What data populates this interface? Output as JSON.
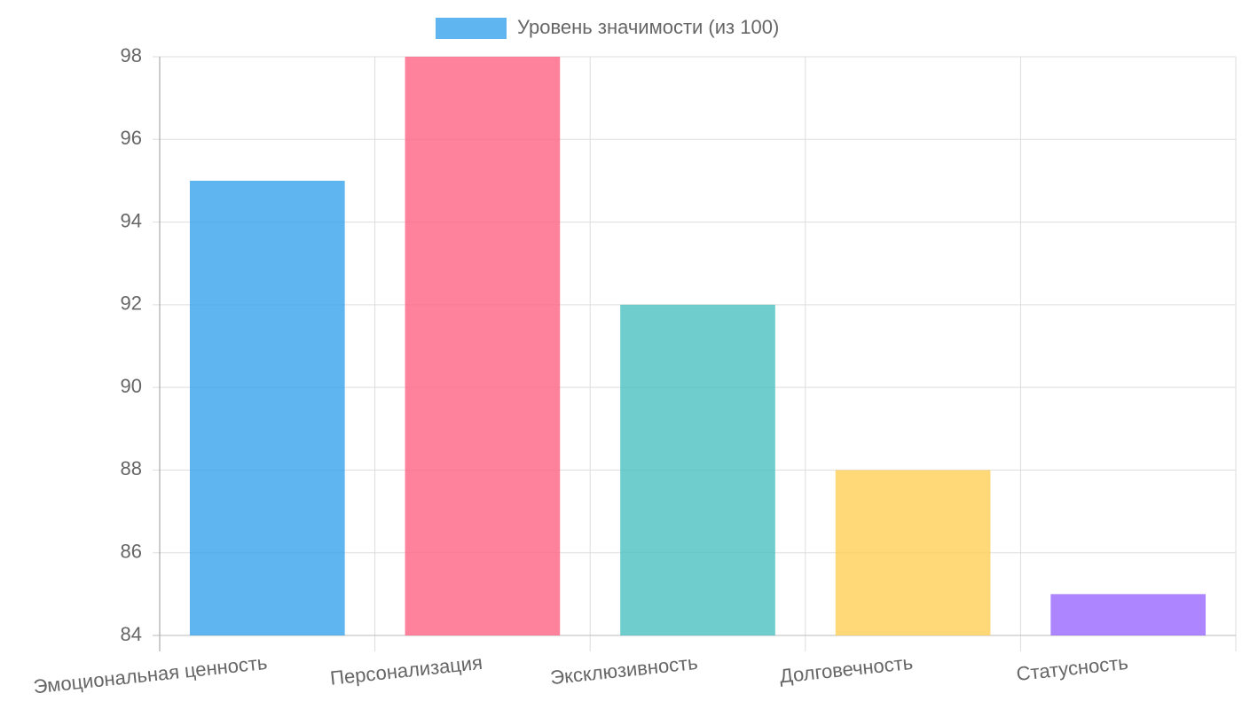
{
  "chart_data": {
    "type": "bar",
    "categories": [
      "Эмоциональная ценность",
      "Персонализация",
      "Эксклюзивность",
      "Долговечность",
      "Статусность"
    ],
    "series": [
      {
        "name": "Уровень значимости (из 100)",
        "colors": [
          "rgba(54,162,235,0.8)",
          "rgba(255,99,132,0.8)",
          "rgba(75,192,192,0.8)",
          "rgba(255,206,86,0.8)",
          "rgba(153,102,255,0.8)"
        ],
        "values": [
          95,
          98,
          92,
          88,
          85
        ]
      }
    ],
    "ylim": [
      84,
      98
    ],
    "yticks": [
      84,
      86,
      88,
      90,
      92,
      94,
      96,
      98
    ],
    "grid": true,
    "legend": "top"
  }
}
